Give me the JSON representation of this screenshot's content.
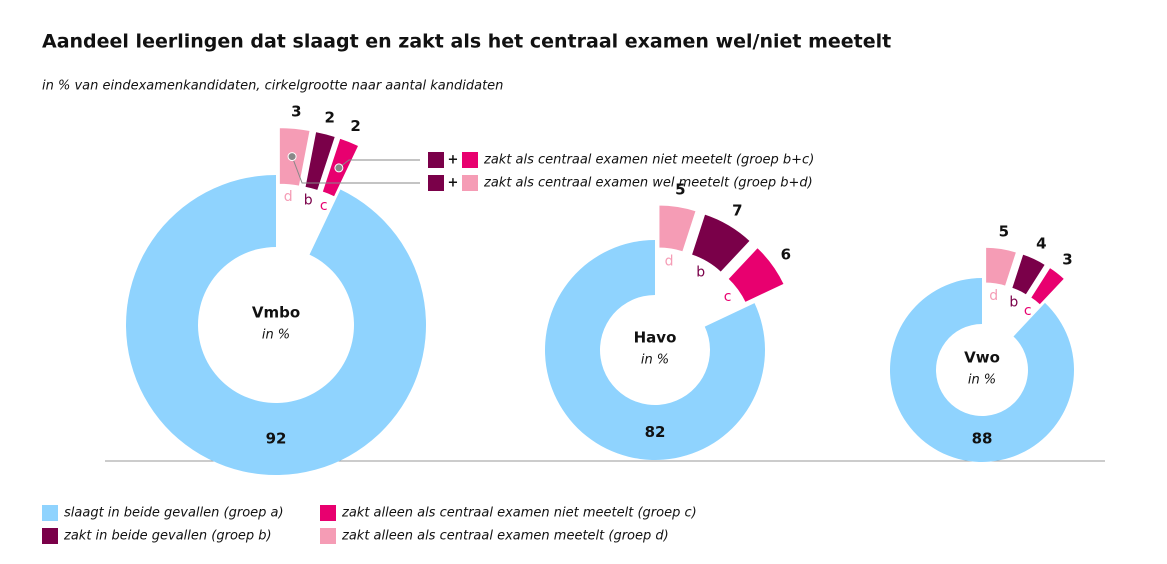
{
  "chart_data": {
    "type": "donut",
    "title": "Aandeel leerlingen dat slaagt en zakt als het centraal examen wel/niet meetelt",
    "subtitle": "in % van eindexamenkandidaten, cirkelgrootte naar aantal kandidaten",
    "series": [
      {
        "name": "slaagt in beide gevallen (groep a)",
        "color": "#8fd3fe"
      },
      {
        "name": "zakt in beide gevallen (groep b)",
        "color": "#7a0049"
      },
      {
        "name": "zakt alleen als centraal examen niet meetelt (groep c)",
        "color": "#e8006f"
      },
      {
        "name": "zakt alleen als centraal examen meetelt (groep d)",
        "color": "#f59cb5"
      }
    ],
    "segment_labels": [
      null,
      "b",
      "c",
      "d"
    ],
    "donuts": [
      {
        "name": "Vmbo",
        "unit": "in %",
        "values": [
          92,
          2,
          2,
          3
        ]
      },
      {
        "name": "Havo",
        "unit": "in %",
        "values": [
          82,
          7,
          6,
          5
        ]
      },
      {
        "name": "Vwo",
        "unit": "in %",
        "values": [
          88,
          4,
          3,
          5
        ]
      }
    ],
    "operator": "+",
    "annotations": [
      {
        "text": "zakt als centraal examen niet meetelt (groep b+c)",
        "series": [
          1,
          2
        ]
      },
      {
        "text": "zakt als centraal examen wel meetelt (groep b+d)",
        "series": [
          1,
          3
        ]
      }
    ]
  }
}
